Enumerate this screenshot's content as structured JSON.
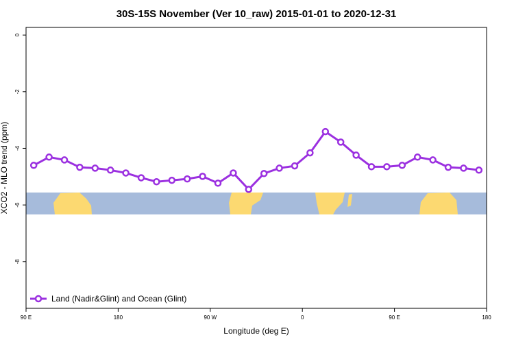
{
  "chart_data": {
    "type": "line",
    "title": "30S-15S November (Ver 10_raw)   2015-01-01 to 2020-12-31",
    "x_label": "Longitude (deg E)",
    "y_label": "XCO2 - MLO trend (ppm)",
    "x": [
      97.5,
      112.5,
      127.5,
      142.5,
      157.5,
      172.5,
      187.5,
      202.5,
      217.5,
      232.5,
      247.5,
      262.5,
      277.5,
      292.5,
      307.5,
      322.5,
      337.5,
      352.5,
      367.5,
      382.5,
      397.5,
      412.5,
      427.5,
      442.5,
      457.5,
      472.5,
      487.5,
      502.5,
      517.5,
      532.5
    ],
    "series": [
      {
        "name": "Land (Nadir&Glint) and Ocean (Glint)",
        "color": "#9b30e0",
        "values": [
          -4.6,
          -4.31,
          -4.41,
          -4.67,
          -4.7,
          -4.77,
          -4.87,
          -5.04,
          -5.18,
          -5.13,
          -5.08,
          -4.99,
          -5.23,
          -4.87,
          -5.45,
          -4.89,
          -4.7,
          -4.62,
          -4.16,
          -3.41,
          -3.78,
          -4.24,
          -4.65,
          -4.65,
          -4.6,
          -4.31,
          -4.41,
          -4.67,
          -4.7,
          -4.77
        ]
      }
    ],
    "xlim": [
      90,
      540
    ],
    "xticks": [
      {
        "value": 90,
        "label": "90 E"
      },
      {
        "value": 180,
        "label": "180"
      },
      {
        "value": 270,
        "label": "90 W"
      },
      {
        "value": 360,
        "label": "0"
      },
      {
        "value": 450,
        "label": "90 E"
      },
      {
        "value": 540,
        "label": "180"
      }
    ],
    "ylim": [
      -9.65,
      0.27
    ],
    "yticks": [
      0,
      -2,
      -4,
      -6,
      -8
    ],
    "legend": "bottom-left"
  }
}
